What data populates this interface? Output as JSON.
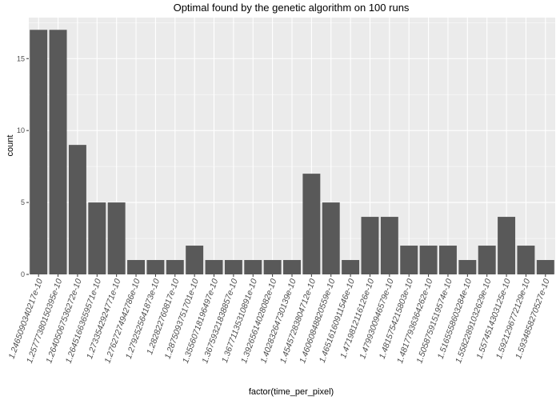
{
  "chart_data": {
    "type": "bar",
    "title": "Optimal found by the genetic algorithm on 100 runs",
    "xlabel": "factor(time_per_pixel)",
    "ylabel": "count",
    "ylim": [
      0,
      17.85
    ],
    "yticks": [
      0,
      5,
      10,
      15
    ],
    "grid": true,
    "panel_color": "#ebebeb",
    "grid_color": "#ffffff",
    "bar_color": "#595959",
    "categories": [
      "1.24650903402​17e-10",
      "1.25777380150395e-10",
      "1.26405067536272e-10",
      "1.26451663659571e-10",
      "1.27335429247​71e-10",
      "1.27627274942786e-10",
      "1.27925256418​73e-10",
      "1.28282276081​7e-10",
      "1.28750937517​01e-10",
      "1.35560718196497e-10",
      "1.36759321838857e-10",
      "1.36771135310891e-10",
      "1.39265614028082e-10",
      "1.40283264730139e-10",
      "1.45457283804712e-10",
      "1.46060848820559e-10",
      "1.46516160911546e-10",
      "1.47198121161​26e-10",
      "1.47993009465​79e-10",
      "1.48157542158​03e-10",
      "1.48177936364262e-10",
      "1.50587591519574e-10",
      "1.51655586032​84e-10",
      "1.55822891032629e-10",
      "1.55745143031​25e-10",
      "1.59212967721​29e-10",
      "1.59348582705​27e-10"
    ],
    "values": [
      17,
      17,
      9,
      5,
      5,
      1,
      1,
      1,
      2,
      1,
      1,
      1,
      1,
      1,
      7,
      5,
      1,
      4,
      4,
      2,
      2,
      2,
      1,
      2,
      4,
      2,
      1
    ]
  }
}
